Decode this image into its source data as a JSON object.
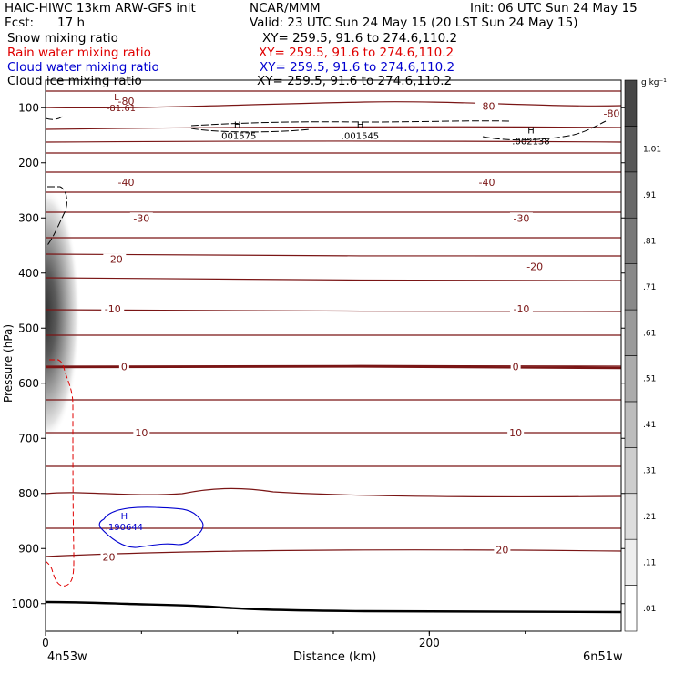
{
  "header": {
    "title": "HAIC-HIWC 13km ARW-GFS init",
    "center": "NCAR/MMM",
    "init": "Init: 06 UTC Sun 24 May 15",
    "fcst_label": "Fcst:",
    "fcst_value": "17 h",
    "valid": "Valid: 23 UTC Sun 24 May 15 (20 LST Sun 24 May 15)"
  },
  "fields": [
    {
      "label": "Snow mixing ratio",
      "xy": "XY= 259.5, 91.6 to 274.6,110.2",
      "color": "#000000"
    },
    {
      "label": "Rain water mixing ratio",
      "xy": "XY= 259.5, 91.6 to 274.6,110.2",
      "color": "#e00000"
    },
    {
      "label": "Cloud water mixing ratio",
      "xy": "XY= 259.5, 91.6 to 274.6,110.2",
      "color": "#0000d0"
    },
    {
      "label": "Cloud ice mixing ratio",
      "xy": "XY= 259.5, 91.6 to 274.6,110.2",
      "color": "#000000"
    }
  ],
  "chart_data": {
    "type": "contour",
    "xlabel": "Distance (km)",
    "ylabel": "Pressure (hPa)",
    "xlim": [
      0,
      300
    ],
    "ylim": [
      1050,
      50
    ],
    "x_ticks": [
      0,
      200
    ],
    "x_end_labels": [
      "4n53w",
      "6n51w"
    ],
    "y_ticks": [
      100,
      200,
      300,
      400,
      500,
      600,
      700,
      800,
      900,
      1000
    ],
    "temperature_contour_labels": [
      {
        "x": 42,
        "p": 88,
        "text": "-80"
      },
      {
        "x": 230,
        "p": 97,
        "text": "-80"
      },
      {
        "x": 295,
        "p": 110,
        "text": "-80"
      },
      {
        "x": 42,
        "p": 235,
        "text": "-40"
      },
      {
        "x": 230,
        "p": 235,
        "text": "-40"
      },
      {
        "x": 50,
        "p": 300,
        "text": "-30"
      },
      {
        "x": 248,
        "p": 300,
        "text": "-30"
      },
      {
        "x": 36,
        "p": 375,
        "text": "-20"
      },
      {
        "x": 255,
        "p": 388,
        "text": "-20"
      },
      {
        "x": 35,
        "p": 465,
        "text": "-10"
      },
      {
        "x": 248,
        "p": 465,
        "text": "-10"
      },
      {
        "x": 41,
        "p": 570,
        "text": "0"
      },
      {
        "x": 245,
        "p": 570,
        "text": "0"
      },
      {
        "x": 50,
        "p": 690,
        "text": "10"
      },
      {
        "x": 245,
        "p": 690,
        "text": "10"
      },
      {
        "x": 33,
        "p": 915,
        "text": "20"
      },
      {
        "x": 238,
        "p": 902,
        "text": "20"
      }
    ],
    "extrema": [
      {
        "x": 37,
        "p": 90,
        "kind": "L",
        "value": "-81.61"
      },
      {
        "x": 100,
        "p": 140,
        "kind": "H",
        "value": ".001575"
      },
      {
        "x": 164,
        "p": 140,
        "kind": "H",
        "value": ".001545"
      },
      {
        "x": 253,
        "p": 150,
        "kind": "H",
        "value": ".002138"
      },
      {
        "x": 41,
        "p": 850,
        "kind": "H",
        "value": ".190644"
      }
    ],
    "colorbar": {
      "unit": "g kg⁻¹",
      "labels": [
        ".01",
        ".11",
        ".21",
        ".31",
        ".41",
        ".51",
        ".61",
        ".71",
        ".81",
        ".91",
        "1.01"
      ]
    }
  }
}
